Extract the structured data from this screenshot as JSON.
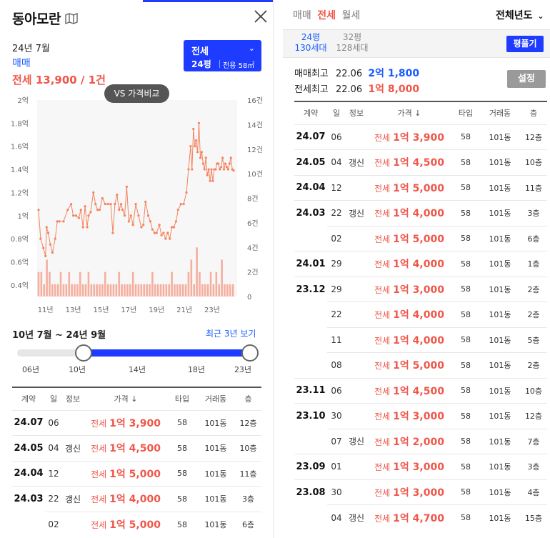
{
  "left": {
    "title": "동아모란",
    "year_month": "24년 7월",
    "trade_type": "매매",
    "price_summary": "전세 13,900 / 1건",
    "selector": {
      "type": "전세",
      "area": "24평",
      "exclusive": "전용 58㎡"
    },
    "vs_button": "VS 가격비교",
    "range_label": "10년 7월 ~ 24년 9월",
    "recent_link": "최근 3년 보기",
    "slider_ticks": [
      "06년",
      "10년",
      "14년",
      "18년",
      "23년"
    ],
    "slider": {
      "start": "10년",
      "end": "23년"
    }
  },
  "chart_data": {
    "type": "line",
    "title": "",
    "y_left_ticks": [
      "2억",
      "1.8억",
      "1.6억",
      "1.4억",
      "1.2억",
      "1억",
      "0.8억",
      "0.6억",
      "0.4억"
    ],
    "y_right_ticks": [
      "16건",
      "14건",
      "12건",
      "10건",
      "8건",
      "6건",
      "4건",
      "2건",
      "0"
    ],
    "x_ticks": [
      "11년",
      "13년",
      "15년",
      "17년",
      "19년",
      "21년",
      "23년"
    ],
    "ylim_price": [
      0.3,
      2.0
    ],
    "ylim_count": [
      0,
      16
    ],
    "xlim": [
      2010.4,
      2024.8
    ],
    "series": [
      {
        "color": "#f4845f",
        "x": [
          2010.5,
          2010.65,
          2010.85,
          2011.0,
          2011.08,
          2011.2,
          2011.35,
          2011.5,
          2011.7,
          2011.85,
          2012.0,
          2012.3,
          2012.6,
          2012.85,
          2013.0,
          2013.2,
          2013.4,
          2013.55,
          2013.7,
          2013.85,
          2014.0,
          2014.1,
          2014.25,
          2014.45,
          2014.6,
          2014.75,
          2014.9,
          2015.1,
          2015.3,
          2015.5,
          2015.7,
          2015.85,
          2016.0,
          2016.15,
          2016.3,
          2016.45,
          2016.55,
          2016.7,
          2016.85,
          2017.0,
          2017.15,
          2017.3,
          2017.5,
          2017.7,
          2017.9,
          2018.05,
          2018.2,
          2018.4,
          2018.55,
          2018.7,
          2018.85,
          2019.0,
          2019.2,
          2019.35,
          2019.5,
          2019.65,
          2019.8,
          2019.95,
          2020.1,
          2020.25,
          2020.4,
          2020.55,
          2020.75,
          2020.95,
          2021.15,
          2021.3,
          2021.45,
          2021.55,
          2021.65,
          2021.75,
          2021.85,
          2021.95,
          2022.05,
          2022.15,
          2022.25,
          2022.35,
          2022.45,
          2022.55,
          2022.65,
          2022.75,
          2022.85,
          2022.95,
          2023.05,
          2023.15,
          2023.25,
          2023.35,
          2023.45,
          2023.55,
          2023.65,
          2023.75,
          2023.85,
          2023.95,
          2024.05,
          2024.15,
          2024.25,
          2024.35,
          2024.45,
          2024.55
        ],
        "y": [
          1.05,
          0.8,
          0.72,
          0.65,
          0.9,
          0.85,
          0.75,
          0.68,
          0.8,
          0.95,
          0.95,
          0.95,
          1.05,
          1.1,
          1.0,
          1.0,
          0.98,
          1.05,
          0.9,
          1.08,
          0.9,
          1.0,
          1.03,
          1.2,
          1.1,
          1.05,
          1.05,
          1.15,
          1.1,
          1.1,
          1.1,
          0.85,
          1.1,
          1.18,
          1.05,
          1.1,
          1.05,
          1.0,
          1.25,
          0.95,
          1.0,
          0.92,
          1.1,
          1.0,
          0.9,
          0.92,
          1.12,
          1.0,
          0.95,
          0.88,
          0.85,
          0.85,
          0.92,
          0.83,
          0.85,
          0.8,
          0.85,
          0.8,
          0.9,
          0.9,
          0.95,
          1.05,
          1.1,
          1.1,
          1.2,
          1.4,
          1.6,
          1.4,
          1.75,
          1.6,
          1.65,
          1.55,
          1.8,
          1.5,
          1.55,
          1.45,
          1.4,
          1.5,
          1.35,
          1.4,
          1.3,
          1.4,
          1.3,
          1.4,
          1.4,
          1.45,
          1.45,
          1.4,
          1.42,
          1.5,
          1.4,
          1.45,
          1.42,
          1.4,
          1.45,
          1.5,
          1.4,
          1.39
        ]
      }
    ],
    "bars": {
      "color": "#f6a28f",
      "x": [
        2010.5,
        2010.7,
        2010.9,
        2011.1,
        2011.3,
        2011.5,
        2011.7,
        2011.9,
        2012.1,
        2012.3,
        2012.5,
        2012.7,
        2012.9,
        2013.1,
        2013.3,
        2013.5,
        2013.7,
        2013.9,
        2014.1,
        2014.3,
        2014.5,
        2014.7,
        2014.9,
        2015.1,
        2015.3,
        2015.5,
        2015.7,
        2015.9,
        2016.1,
        2016.3,
        2016.5,
        2016.7,
        2016.9,
        2017.1,
        2017.3,
        2017.5,
        2017.7,
        2017.9,
        2018.1,
        2018.3,
        2018.5,
        2018.7,
        2018.9,
        2019.1,
        2019.3,
        2019.5,
        2019.7,
        2019.9,
        2020.1,
        2020.3,
        2020.5,
        2020.7,
        2020.9,
        2021.1,
        2021.3,
        2021.5,
        2021.7,
        2021.9,
        2022.1,
        2022.3,
        2022.5,
        2022.7,
        2022.9,
        2023.1,
        2023.3,
        2023.5,
        2023.7,
        2023.9,
        2024.1,
        2024.3,
        2024.5
      ],
      "y": [
        2,
        2,
        1,
        3,
        2,
        1,
        1,
        1,
        2,
        1,
        1,
        2,
        1,
        1,
        1,
        2,
        1,
        1,
        2,
        1,
        1,
        1,
        1,
        1,
        2,
        1,
        1,
        1,
        1,
        2,
        1,
        1,
        1,
        1,
        2,
        1,
        1,
        1,
        1,
        1,
        1,
        2,
        1,
        1,
        1,
        1,
        1,
        1,
        2,
        1,
        1,
        1,
        1,
        1,
        2,
        3,
        1,
        4,
        2,
        1,
        1,
        1,
        2,
        1,
        2,
        1,
        3,
        1,
        1,
        1,
        1
      ]
    }
  },
  "table_headers": [
    "계약",
    "일",
    "정보",
    "가격 ↓",
    "타입",
    "거래동",
    "층"
  ],
  "left_rows": [
    {
      "date": "24.07",
      "day": "06",
      "info": "",
      "kind": "전세",
      "price": "1억 3,900",
      "type": "58",
      "dong": "101동",
      "floor": "12층"
    },
    {
      "date": "24.05",
      "day": "04",
      "info": "갱신",
      "kind": "전세",
      "price": "1억 4,500",
      "type": "58",
      "dong": "101동",
      "floor": "10층"
    },
    {
      "date": "24.04",
      "day": "12",
      "info": "",
      "kind": "전세",
      "price": "1억 5,000",
      "type": "58",
      "dong": "101동",
      "floor": "11층"
    },
    {
      "date": "24.03",
      "day": "22",
      "info": "갱신",
      "kind": "전세",
      "price": "1억 4,000",
      "type": "58",
      "dong": "101동",
      "floor": "3층"
    },
    {
      "date": "",
      "day": "02",
      "info": "",
      "kind": "전세",
      "price": "1억 5,000",
      "type": "58",
      "dong": "101동",
      "floor": "6층"
    }
  ],
  "right": {
    "trade_tabs": [
      "매매",
      "전세",
      "월세"
    ],
    "active_tab": 1,
    "year_select": "전체년도",
    "area_active": {
      "line1": "24평",
      "line2": "130세대"
    },
    "area_other": {
      "line1": "32평",
      "line2": "128세대"
    },
    "pyeong_button": "평풀기",
    "sale_high": {
      "label": "매매최고",
      "date": "22.06",
      "value": "2억 1,800"
    },
    "jeonse_high": {
      "label": "전세최고",
      "date": "22.06",
      "value": "1억 8,000"
    },
    "settings_button": "설정",
    "rows": [
      {
        "date": "24.07",
        "day": "06",
        "info": "",
        "kind": "전세",
        "price": "1억 3,900",
        "type": "58",
        "dong": "101동",
        "floor": "12층"
      },
      {
        "date": "24.05",
        "day": "04",
        "info": "갱신",
        "kind": "전세",
        "price": "1억 4,500",
        "type": "58",
        "dong": "101동",
        "floor": "10층"
      },
      {
        "date": "24.04",
        "day": "12",
        "info": "",
        "kind": "전세",
        "price": "1억 5,000",
        "type": "58",
        "dong": "101동",
        "floor": "11층"
      },
      {
        "date": "24.03",
        "day": "22",
        "info": "갱신",
        "kind": "전세",
        "price": "1억 4,000",
        "type": "58",
        "dong": "101동",
        "floor": "3층"
      },
      {
        "date": "",
        "day": "02",
        "info": "",
        "kind": "전세",
        "price": "1억 5,000",
        "type": "58",
        "dong": "101동",
        "floor": "6층"
      },
      {
        "date": "24.01",
        "day": "29",
        "info": "",
        "kind": "전세",
        "price": "1억 4,000",
        "type": "58",
        "dong": "101동",
        "floor": "1층"
      },
      {
        "date": "23.12",
        "day": "29",
        "info": "",
        "kind": "전세",
        "price": "1억 3,000",
        "type": "58",
        "dong": "101동",
        "floor": "2층"
      },
      {
        "date": "",
        "day": "22",
        "info": "",
        "kind": "전세",
        "price": "1억 4,000",
        "type": "58",
        "dong": "101동",
        "floor": "2층"
      },
      {
        "date": "",
        "day": "11",
        "info": "",
        "kind": "전세",
        "price": "1억 4,000",
        "type": "58",
        "dong": "101동",
        "floor": "5층"
      },
      {
        "date": "",
        "day": "08",
        "info": "",
        "kind": "전세",
        "price": "1억 5,000",
        "type": "58",
        "dong": "101동",
        "floor": "2층"
      },
      {
        "date": "23.11",
        "day": "06",
        "info": "",
        "kind": "전세",
        "price": "1억 4,500",
        "type": "58",
        "dong": "101동",
        "floor": "10층"
      },
      {
        "date": "23.10",
        "day": "30",
        "info": "",
        "kind": "전세",
        "price": "1억 3,000",
        "type": "58",
        "dong": "101동",
        "floor": "12층"
      },
      {
        "date": "",
        "day": "07",
        "info": "갱신",
        "kind": "전세",
        "price": "1억 2,000",
        "type": "58",
        "dong": "101동",
        "floor": "7층"
      },
      {
        "date": "23.09",
        "day": "01",
        "info": "",
        "kind": "전세",
        "price": "1억 3,000",
        "type": "58",
        "dong": "101동",
        "floor": "3층"
      },
      {
        "date": "23.08",
        "day": "30",
        "info": "",
        "kind": "전세",
        "price": "1억 3,000",
        "type": "58",
        "dong": "101동",
        "floor": "4층"
      },
      {
        "date": "",
        "day": "04",
        "info": "갱신",
        "kind": "전세",
        "price": "1억 4,700",
        "type": "58",
        "dong": "101동",
        "floor": "15층"
      }
    ]
  }
}
